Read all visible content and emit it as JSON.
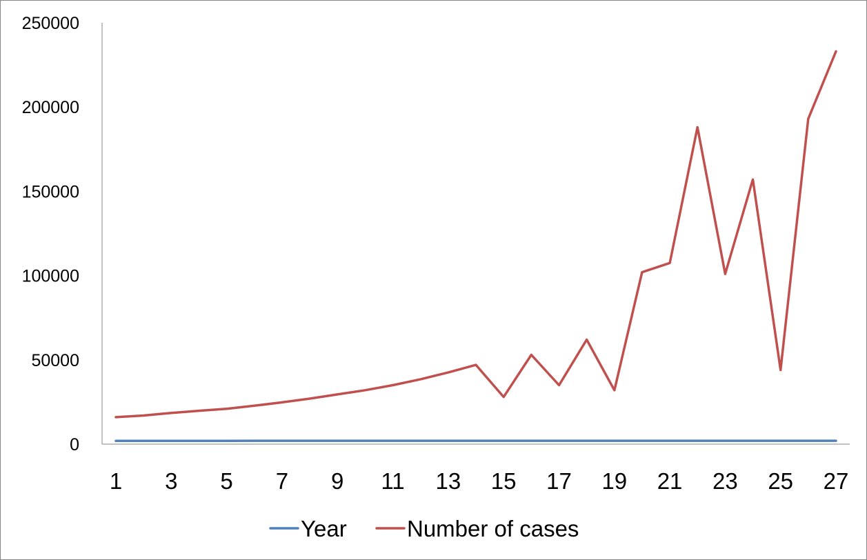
{
  "chart_data": {
    "type": "line",
    "x": [
      1,
      2,
      3,
      4,
      5,
      6,
      7,
      8,
      9,
      10,
      11,
      12,
      13,
      14,
      15,
      16,
      17,
      18,
      19,
      20,
      21,
      22,
      23,
      24,
      25,
      26,
      27
    ],
    "x_tick_labels": [
      "1",
      "3",
      "5",
      "7",
      "9",
      "11",
      "13",
      "15",
      "17",
      "19",
      "21",
      "23",
      "25",
      "27"
    ],
    "y_tick_labels": [
      "0",
      "50000",
      "100000",
      "150000",
      "200000",
      "250000"
    ],
    "ylim": [
      0,
      250000
    ],
    "grid": false,
    "legend_position": "bottom",
    "series": [
      {
        "name": "Year",
        "color": "#4f81bd",
        "values": [
          1980,
          1981,
          1982,
          1983,
          1984,
          1985,
          1986,
          1987,
          1988,
          1989,
          1990,
          1991,
          1992,
          1993,
          1994,
          1995,
          1996,
          1997,
          1998,
          1999,
          2000,
          2001,
          2002,
          2003,
          2004,
          2005,
          2006
        ]
      },
      {
        "name": "Number of cases",
        "color": "#c0504d",
        "values": [
          16000,
          17000,
          18500,
          19800,
          21000,
          22800,
          24800,
          27000,
          29500,
          32000,
          35000,
          38500,
          42500,
          47000,
          28000,
          53000,
          35000,
          62000,
          32000,
          102000,
          107500,
          188000,
          101000,
          157000,
          44000,
          193000,
          233000
        ]
      }
    ]
  }
}
